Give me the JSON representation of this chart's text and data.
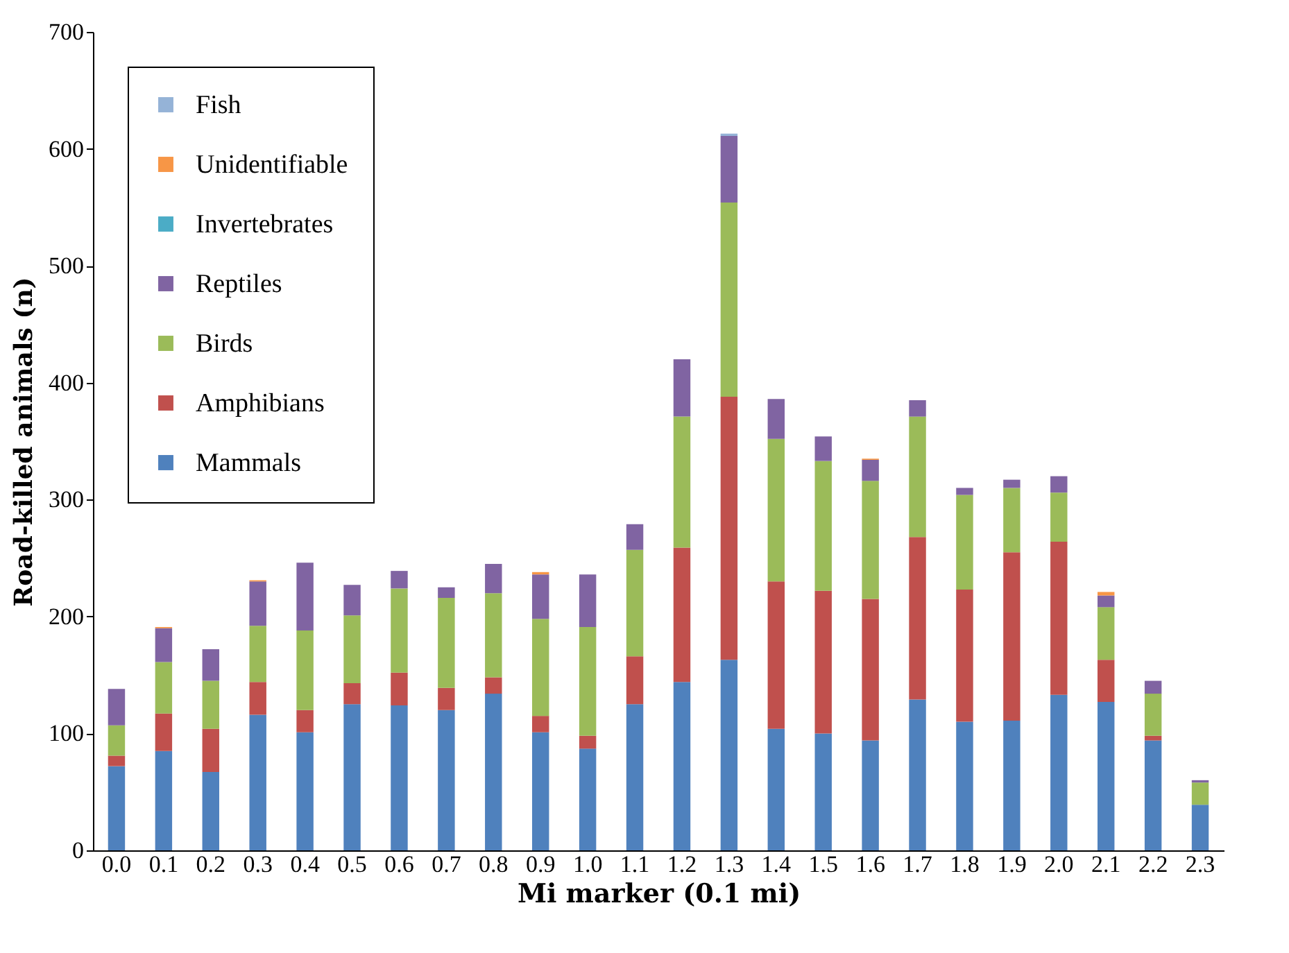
{
  "chart_data": {
    "type": "bar",
    "stacked": true,
    "xlabel": "Mi marker (0.1 mi)",
    "ylabel": "Road-killed animals (n)",
    "categories": [
      "0.0",
      "0.1",
      "0.2",
      "0.3",
      "0.4",
      "0.5",
      "0.6",
      "0.7",
      "0.8",
      "0.9",
      "1.0",
      "1.1",
      "1.2",
      "1.3",
      "1.4",
      "1.5",
      "1.6",
      "1.7",
      "1.8",
      "1.9",
      "2.0",
      "2.1",
      "2.2",
      "2.3"
    ],
    "series": [
      {
        "name": "Mammals",
        "color": "#4f81bd",
        "values": [
          72,
          85,
          67,
          116,
          101,
          125,
          124,
          120,
          134,
          101,
          87,
          125,
          144,
          163,
          104,
          100,
          94,
          129,
          110,
          111,
          133,
          127,
          94,
          39
        ]
      },
      {
        "name": "Amphibians",
        "color": "#c0504d",
        "values": [
          9,
          32,
          37,
          28,
          19,
          18,
          28,
          19,
          14,
          14,
          11,
          41,
          115,
          225,
          126,
          122,
          121,
          139,
          113,
          144,
          131,
          36,
          4,
          0
        ]
      },
      {
        "name": "Birds",
        "color": "#9bbb59",
        "values": [
          26,
          44,
          41,
          48,
          68,
          58,
          72,
          77,
          72,
          83,
          93,
          91,
          112,
          166,
          122,
          111,
          101,
          103,
          81,
          55,
          42,
          45,
          36,
          19
        ]
      },
      {
        "name": "Reptiles",
        "color": "#8064a2",
        "values": [
          31,
          29,
          27,
          38,
          58,
          26,
          15,
          9,
          25,
          38,
          45,
          22,
          49,
          57,
          34,
          21,
          18,
          14,
          6,
          7,
          14,
          10,
          11,
          2
        ]
      },
      {
        "name": "Invertebrates",
        "color": "#4bacc6",
        "values": [
          0,
          0,
          0,
          0,
          0,
          0,
          0,
          0,
          0,
          0,
          0,
          0,
          0,
          0,
          0,
          0,
          0,
          0,
          0,
          0,
          0,
          0,
          0,
          0
        ]
      },
      {
        "name": "Unidentifiable",
        "color": "#f79646",
        "values": [
          0,
          1,
          0,
          1,
          0,
          0,
          0,
          0,
          0,
          2,
          0,
          0,
          0,
          0,
          0,
          0,
          1,
          0,
          0,
          0,
          0,
          3,
          0,
          0
        ]
      },
      {
        "name": "Fish",
        "color": "#95b3d7",
        "values": [
          0,
          0,
          0,
          0,
          0,
          0,
          0,
          0,
          0,
          0,
          0,
          0,
          0,
          2,
          0,
          0,
          0,
          0,
          0,
          0,
          0,
          0,
          0,
          0
        ]
      }
    ],
    "ylim": [
      0,
      700
    ],
    "yticks": [
      0,
      100,
      200,
      300,
      400,
      500,
      600,
      700
    ],
    "grid": false,
    "legend": "top left"
  }
}
